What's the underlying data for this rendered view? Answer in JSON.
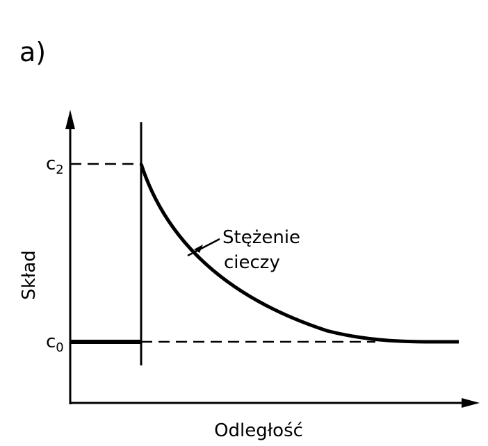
{
  "panel_label": "a)",
  "y_axis_label": "Skład",
  "x_axis_label": "Odległość",
  "ticks": {
    "c2": {
      "base": "c",
      "sub": "2"
    },
    "c0": {
      "base": "c",
      "sub": "0"
    }
  },
  "annotation": {
    "line1": "Stężenie",
    "line2": "cieczy"
  },
  "colors": {
    "ink": "#000000",
    "background": "#ffffff"
  }
}
